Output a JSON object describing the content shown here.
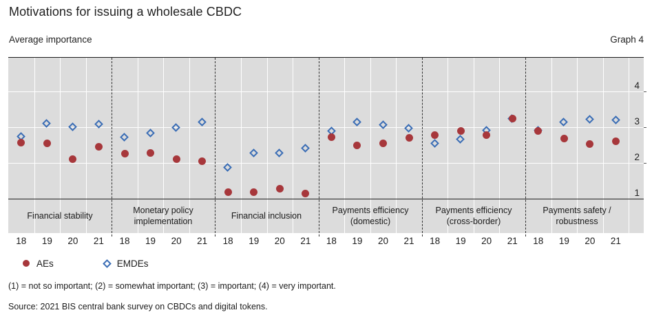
{
  "header": {
    "title": "Motivations for issuing a wholesale CBDC",
    "subtitle": "Average importance",
    "graph_label": "Graph 4"
  },
  "footnote": "(1) = not so important; (2) = somewhat important; (3) = important; (4) = very important.",
  "source": "Source: 2021 BIS central bank survey on CBDCs and digital tokens.",
  "colors": {
    "aes": "#a7373b",
    "emdes": "#3a6db5",
    "plot_background": "#dcdcdc",
    "gridline": "#ffffff"
  },
  "chart_data": {
    "type": "scatter",
    "title": "Motivations for issuing a wholesale CBDC",
    "subtitle": "Average importance",
    "ylabel": "",
    "xlabel": "",
    "ylim": [
      1,
      4
    ],
    "yticks": [
      1,
      2,
      3,
      4
    ],
    "grid": true,
    "legend_position": "bottom-left",
    "years": [
      "18",
      "19",
      "20",
      "21"
    ],
    "categories": [
      "Financial stability",
      "Monetary policy implementation",
      "Financial inclusion",
      "Payments efficiency (domestic)",
      "Payments efficiency (cross-border)",
      "Payments safety / robustness"
    ],
    "category_label_lines": [
      [
        "Financial stability"
      ],
      [
        "Monetary policy",
        "implementation"
      ],
      [
        "Financial inclusion"
      ],
      [
        "Payments efficiency",
        "(domestic)"
      ],
      [
        "Payments efficiency",
        "(cross-border)"
      ],
      [
        "Payments safety /",
        "robustness"
      ]
    ],
    "series": [
      {
        "name": "EMDEs",
        "marker": "diamond",
        "color": "#3a6db5",
        "values": [
          [
            2.73,
            3.1,
            3.01,
            3.08
          ],
          [
            2.72,
            2.82,
            2.99,
            3.13
          ],
          [
            1.87,
            2.27,
            2.27,
            2.4
          ],
          [
            2.88,
            3.13,
            3.06,
            2.97
          ],
          [
            2.55,
            2.65,
            2.9,
            3.24
          ],
          [
            2.9,
            3.14,
            3.22,
            3.19
          ]
        ]
      },
      {
        "name": "AEs",
        "marker": "circle",
        "color": "#a7373b",
        "values": [
          [
            2.57,
            2.55,
            2.11,
            2.45
          ],
          [
            2.26,
            2.28,
            2.11,
            2.04
          ],
          [
            1.19,
            1.19,
            1.28,
            1.14
          ],
          [
            2.72,
            2.5,
            2.54,
            2.71
          ],
          [
            2.78,
            2.9,
            2.78,
            3.24
          ],
          [
            2.9,
            2.69,
            2.53,
            2.6
          ]
        ]
      }
    ],
    "legend_order": [
      "AEs",
      "EMDEs"
    ]
  }
}
